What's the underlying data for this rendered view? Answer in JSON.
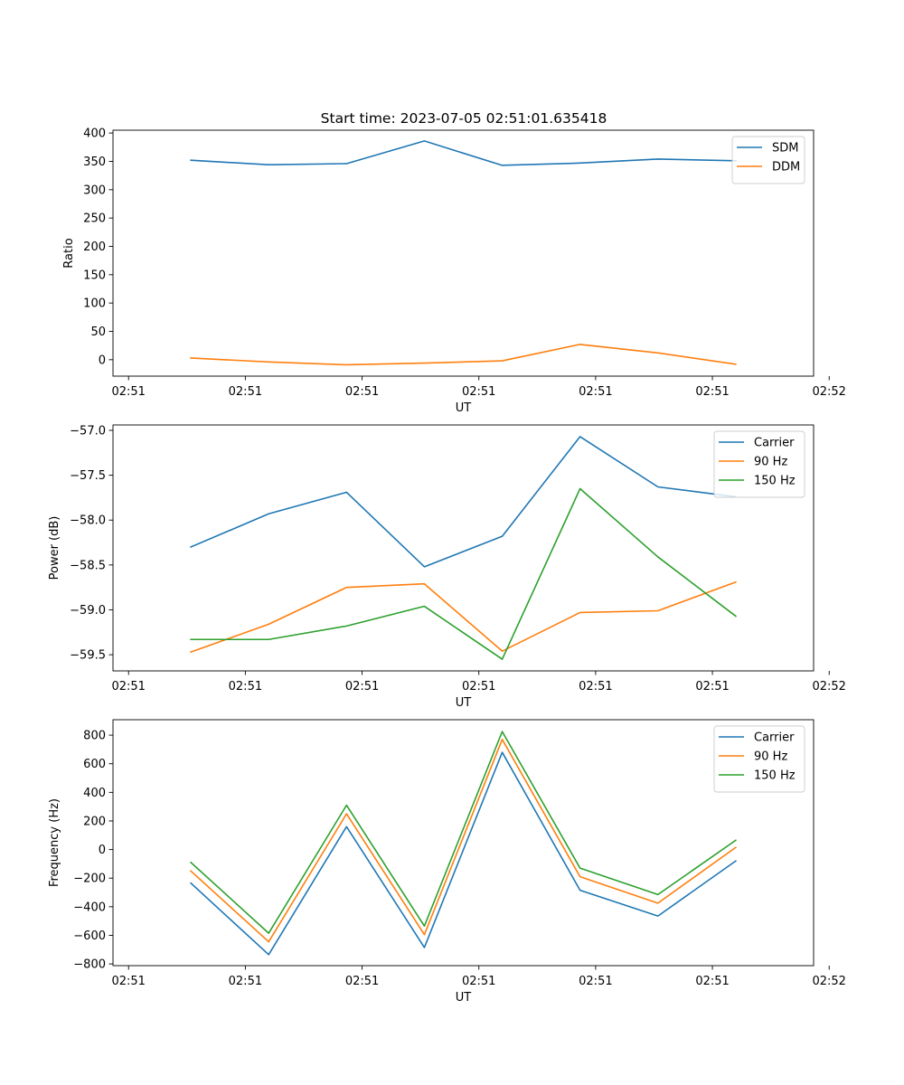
{
  "figure_title": "Start time: 2023-07-05 02:51:01.635418",
  "colors": {
    "blue": "#1f77b4",
    "orange": "#ff7f0e",
    "green": "#2ca02c"
  },
  "chart_data": [
    {
      "type": "line",
      "title": "Start time: 2023-07-05 02:51:01.635418",
      "xlabel": "UT",
      "ylabel": "Ratio",
      "x": [
        1,
        2,
        3,
        4,
        5,
        6,
        7,
        8
      ],
      "xlim": [
        0,
        9
      ],
      "xtick_values": [
        0.2,
        1.7,
        3.2,
        4.7,
        6.2,
        7.7,
        9.2
      ],
      "xtick_labels": [
        "02:51",
        "02:51",
        "02:51",
        "02:51",
        "02:51",
        "02:51",
        "02:52"
      ],
      "ylim": [
        -29,
        405
      ],
      "yticks": [
        0,
        50,
        100,
        150,
        200,
        250,
        300,
        350,
        400
      ],
      "legend_loc": "upper right",
      "series": [
        {
          "name": "SDM",
          "color": "#1f77b4",
          "values": [
            352,
            344,
            346,
            386,
            343,
            347,
            354,
            351
          ]
        },
        {
          "name": "DDM",
          "color": "#ff7f0e",
          "values": [
            3,
            -4,
            -9,
            -6,
            -2,
            27,
            12,
            -8
          ]
        }
      ]
    },
    {
      "type": "line",
      "title": "",
      "xlabel": "UT",
      "ylabel": "Power (dB)",
      "x": [
        1,
        2,
        3,
        4,
        5,
        6,
        7,
        8
      ],
      "xlim": [
        0,
        9
      ],
      "xtick_values": [
        0.2,
        1.7,
        3.2,
        4.7,
        6.2,
        7.7,
        9.2
      ],
      "xtick_labels": [
        "02:51",
        "02:51",
        "02:51",
        "02:51",
        "02:51",
        "02:51",
        "02:52"
      ],
      "ylim": [
        -59.68,
        -56.94
      ],
      "yticks": [
        -59.5,
        -59.0,
        -58.5,
        -58.0,
        -57.5,
        -57.0
      ],
      "ytick_labels": [
        "−59.5",
        "−59.0",
        "−58.5",
        "−58.0",
        "−57.5",
        "−57.0"
      ],
      "legend_loc": "upper right",
      "series": [
        {
          "name": "Carrier",
          "color": "#1f77b4",
          "values": [
            -58.3,
            -57.93,
            -57.69,
            -58.52,
            -58.18,
            -57.07,
            -57.63,
            -57.74
          ]
        },
        {
          "name": "90 Hz",
          "color": "#ff7f0e",
          "values": [
            -59.47,
            -59.16,
            -58.75,
            -58.71,
            -59.46,
            -59.03,
            -59.01,
            -58.69
          ]
        },
        {
          "name": "150 Hz",
          "color": "#2ca02c",
          "values": [
            -59.33,
            -59.33,
            -59.18,
            -58.96,
            -59.55,
            -57.65,
            -58.41,
            -59.07
          ]
        }
      ]
    },
    {
      "type": "line",
      "title": "",
      "xlabel": "UT",
      "ylabel": "Frequency (Hz)",
      "x": [
        1,
        2,
        3,
        4,
        5,
        6,
        7,
        8
      ],
      "xlim": [
        0,
        9
      ],
      "xtick_values": [
        0.2,
        1.7,
        3.2,
        4.7,
        6.2,
        7.7,
        9.2
      ],
      "xtick_labels": [
        "02:51",
        "02:51",
        "02:51",
        "02:51",
        "02:51",
        "02:51",
        "02:52"
      ],
      "ylim": [
        -812,
        908
      ],
      "yticks": [
        -800,
        -600,
        -400,
        -200,
        0,
        200,
        400,
        600,
        800
      ],
      "ytick_labels": [
        "−800",
        "−600",
        "−400",
        "−200",
        "0",
        "200",
        "400",
        "600",
        "800"
      ],
      "legend_loc": "upper right",
      "series": [
        {
          "name": "Carrier",
          "color": "#1f77b4",
          "values": [
            -235,
            -735,
            160,
            -685,
            680,
            -285,
            -465,
            -80
          ]
        },
        {
          "name": "90 Hz",
          "color": "#ff7f0e",
          "values": [
            -150,
            -645,
            250,
            -595,
            770,
            -190,
            -375,
            15
          ]
        },
        {
          "name": "150 Hz",
          "color": "#2ca02c",
          "values": [
            -90,
            -585,
            310,
            -535,
            825,
            -130,
            -315,
            65
          ]
        }
      ]
    }
  ]
}
